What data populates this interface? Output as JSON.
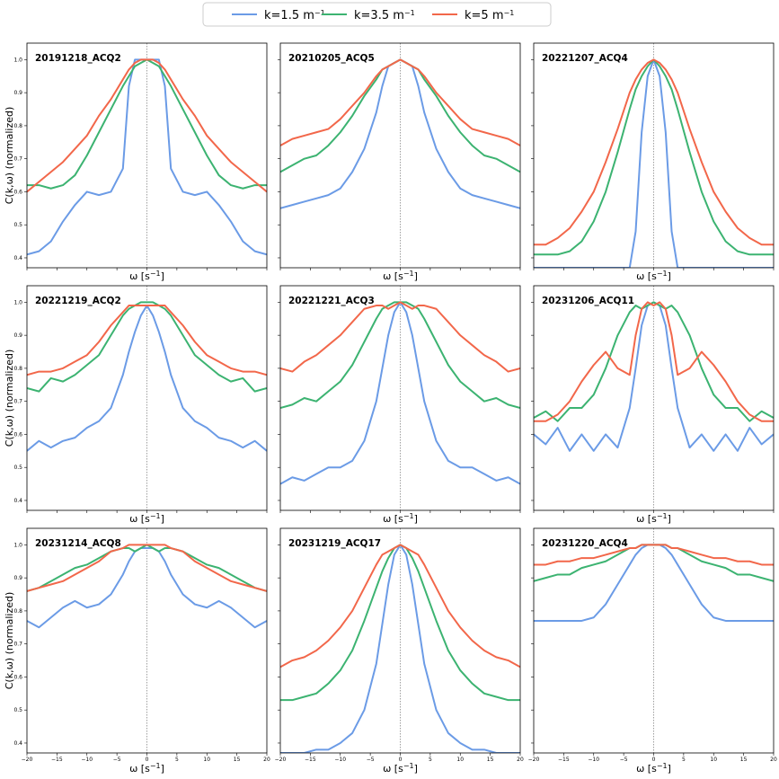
{
  "figure": {
    "legend": [
      {
        "label": "k=1.5 m",
        "sup": "−1",
        "color": "#6b9be6"
      },
      {
        "label": "k=3.5 m",
        "sup": "−1",
        "color": "#3cb371"
      },
      {
        "label": "k=5 m",
        "sup": "−1",
        "color": "#f2674a"
      }
    ],
    "xlabel": "ω [s",
    "xlabel_sup": "−1",
    "xlabel_end": "]",
    "ylabel": "C(k,ω) (normalized)"
  },
  "chart_data": {
    "type": "line",
    "x": [
      -20,
      -18,
      -16,
      -14,
      -12,
      -10,
      -8,
      -6,
      -4,
      -3,
      -2,
      -1,
      0,
      1,
      2,
      3,
      4,
      6,
      8,
      10,
      12,
      14,
      16,
      18,
      20
    ],
    "xlim": [
      -20,
      20
    ],
    "ylim": [
      0.37,
      1.05
    ],
    "xticks": [
      -20,
      -15,
      -10,
      -5,
      0,
      5,
      10,
      15,
      20
    ],
    "xtick_labels": [
      "−20",
      "−15",
      "−10",
      "−5",
      "0",
      "5",
      "10",
      "15",
      "20"
    ],
    "yticks": [
      0.4,
      0.5,
      0.6,
      0.7,
      0.8,
      0.9,
      1.0
    ],
    "ytick_labels": [
      "0.4",
      "0.5",
      "0.6",
      "0.7",
      "0.8",
      "0.9",
      "1.0"
    ],
    "panels": [
      {
        "title": "20191218_ACQ2",
        "series": [
          {
            "name": "k=1.5",
            "values": [
              0.41,
              0.42,
              0.45,
              0.51,
              0.56,
              0.6,
              0.59,
              0.6,
              0.67,
              0.92,
              1.0,
              1.0,
              1.0,
              1.0,
              1.0,
              0.92,
              0.67,
              0.6,
              0.59,
              0.6,
              0.56,
              0.51,
              0.45,
              0.42,
              0.41
            ]
          },
          {
            "name": "k=3.5",
            "values": [
              0.62,
              0.62,
              0.61,
              0.62,
              0.65,
              0.71,
              0.78,
              0.85,
              0.92,
              0.95,
              0.98,
              0.99,
              1.0,
              0.99,
              0.98,
              0.95,
              0.92,
              0.85,
              0.78,
              0.71,
              0.65,
              0.62,
              0.61,
              0.62,
              0.62
            ]
          },
          {
            "name": "k=5",
            "values": [
              0.6,
              0.63,
              0.66,
              0.69,
              0.73,
              0.77,
              0.83,
              0.88,
              0.94,
              0.97,
              0.99,
              1.0,
              1.0,
              1.0,
              0.99,
              0.97,
              0.94,
              0.88,
              0.83,
              0.77,
              0.73,
              0.69,
              0.66,
              0.63,
              0.6
            ]
          }
        ]
      },
      {
        "title": "20210205_ACQ5",
        "series": [
          {
            "name": "k=1.5",
            "values": [
              0.55,
              0.56,
              0.57,
              0.58,
              0.59,
              0.61,
              0.66,
              0.73,
              0.84,
              0.92,
              0.98,
              0.99,
              1.0,
              0.99,
              0.98,
              0.92,
              0.84,
              0.73,
              0.66,
              0.61,
              0.59,
              0.58,
              0.57,
              0.56,
              0.55
            ]
          },
          {
            "name": "k=3.5",
            "values": [
              0.66,
              0.68,
              0.7,
              0.71,
              0.74,
              0.78,
              0.83,
              0.89,
              0.94,
              0.97,
              0.98,
              0.99,
              1.0,
              0.99,
              0.98,
              0.97,
              0.94,
              0.89,
              0.83,
              0.78,
              0.74,
              0.71,
              0.7,
              0.68,
              0.66
            ]
          },
          {
            "name": "k=5",
            "values": [
              0.74,
              0.76,
              0.77,
              0.78,
              0.79,
              0.82,
              0.86,
              0.9,
              0.95,
              0.97,
              0.98,
              0.99,
              1.0,
              0.99,
              0.98,
              0.97,
              0.95,
              0.9,
              0.86,
              0.82,
              0.79,
              0.78,
              0.77,
              0.76,
              0.74
            ]
          }
        ]
      },
      {
        "title": "20221207_ACQ4",
        "series": [
          {
            "name": "k=1.5",
            "values": [
              0.37,
              0.37,
              0.37,
              0.37,
              0.37,
              0.37,
              0.37,
              0.37,
              0.37,
              0.48,
              0.78,
              0.95,
              1.0,
              0.95,
              0.78,
              0.48,
              0.37,
              0.37,
              0.37,
              0.37,
              0.37,
              0.37,
              0.37,
              0.37,
              0.37
            ]
          },
          {
            "name": "k=3.5",
            "values": [
              0.41,
              0.41,
              0.41,
              0.42,
              0.45,
              0.51,
              0.6,
              0.72,
              0.85,
              0.91,
              0.95,
              0.98,
              1.0,
              0.98,
              0.95,
              0.91,
              0.85,
              0.72,
              0.6,
              0.51,
              0.45,
              0.42,
              0.41,
              0.41,
              0.41
            ]
          },
          {
            "name": "k=5",
            "values": [
              0.44,
              0.44,
              0.46,
              0.49,
              0.54,
              0.6,
              0.69,
              0.79,
              0.9,
              0.94,
              0.97,
              0.99,
              1.0,
              0.99,
              0.97,
              0.94,
              0.9,
              0.79,
              0.69,
              0.6,
              0.54,
              0.49,
              0.46,
              0.44,
              0.44
            ]
          }
        ]
      },
      {
        "title": "20221219_ACQ2",
        "series": [
          {
            "name": "k=1.5",
            "values": [
              0.55,
              0.58,
              0.56,
              0.58,
              0.59,
              0.62,
              0.64,
              0.68,
              0.78,
              0.85,
              0.91,
              0.96,
              0.99,
              0.96,
              0.91,
              0.85,
              0.78,
              0.68,
              0.64,
              0.62,
              0.59,
              0.58,
              0.56,
              0.58,
              0.55
            ]
          },
          {
            "name": "k=3.5",
            "values": [
              0.74,
              0.73,
              0.77,
              0.76,
              0.78,
              0.81,
              0.84,
              0.9,
              0.96,
              0.98,
              0.99,
              1.0,
              1.0,
              1.0,
              0.99,
              0.98,
              0.96,
              0.9,
              0.84,
              0.81,
              0.78,
              0.76,
              0.77,
              0.73,
              0.74
            ]
          },
          {
            "name": "k=5",
            "values": [
              0.78,
              0.79,
              0.79,
              0.8,
              0.82,
              0.84,
              0.88,
              0.93,
              0.97,
              0.99,
              0.99,
              0.99,
              0.99,
              0.99,
              0.99,
              0.99,
              0.97,
              0.93,
              0.88,
              0.84,
              0.82,
              0.8,
              0.79,
              0.79,
              0.78
            ]
          }
        ]
      },
      {
        "title": "20221221_ACQ3",
        "series": [
          {
            "name": "k=1.5",
            "values": [
              0.45,
              0.47,
              0.46,
              0.48,
              0.5,
              0.5,
              0.52,
              0.58,
              0.7,
              0.8,
              0.9,
              0.97,
              1.0,
              0.97,
              0.9,
              0.8,
              0.7,
              0.58,
              0.52,
              0.5,
              0.5,
              0.48,
              0.46,
              0.47,
              0.45
            ]
          },
          {
            "name": "k=3.5",
            "values": [
              0.68,
              0.69,
              0.71,
              0.7,
              0.73,
              0.76,
              0.81,
              0.88,
              0.95,
              0.98,
              0.99,
              1.0,
              1.0,
              1.0,
              0.99,
              0.98,
              0.95,
              0.88,
              0.81,
              0.76,
              0.73,
              0.7,
              0.71,
              0.69,
              0.68
            ]
          },
          {
            "name": "k=5",
            "values": [
              0.8,
              0.79,
              0.82,
              0.84,
              0.87,
              0.9,
              0.94,
              0.98,
              0.99,
              0.99,
              0.98,
              0.99,
              1.0,
              0.99,
              0.98,
              0.99,
              0.99,
              0.98,
              0.94,
              0.9,
              0.87,
              0.84,
              0.82,
              0.79,
              0.8
            ]
          }
        ]
      },
      {
        "title": "20231206_ACQ11",
        "series": [
          {
            "name": "k=1.5",
            "values": [
              0.6,
              0.57,
              0.62,
              0.55,
              0.6,
              0.55,
              0.6,
              0.56,
              0.68,
              0.8,
              0.93,
              0.99,
              1.0,
              0.99,
              0.93,
              0.8,
              0.68,
              0.56,
              0.6,
              0.55,
              0.6,
              0.55,
              0.62,
              0.57,
              0.6
            ]
          },
          {
            "name": "k=3.5",
            "values": [
              0.65,
              0.67,
              0.64,
              0.68,
              0.68,
              0.72,
              0.8,
              0.9,
              0.97,
              0.99,
              0.98,
              0.99,
              1.0,
              0.99,
              0.98,
              0.99,
              0.97,
              0.9,
              0.8,
              0.72,
              0.68,
              0.68,
              0.64,
              0.67,
              0.65
            ]
          },
          {
            "name": "k=5",
            "values": [
              0.64,
              0.64,
              0.66,
              0.7,
              0.76,
              0.81,
              0.85,
              0.8,
              0.78,
              0.9,
              0.98,
              1.0,
              0.99,
              1.0,
              0.98,
              0.9,
              0.78,
              0.8,
              0.85,
              0.81,
              0.76,
              0.7,
              0.66,
              0.64,
              0.64
            ]
          }
        ]
      },
      {
        "title": "20231214_ACQ8",
        "series": [
          {
            "name": "k=1.5",
            "values": [
              0.77,
              0.75,
              0.78,
              0.81,
              0.83,
              0.81,
              0.82,
              0.85,
              0.91,
              0.95,
              0.98,
              0.99,
              0.99,
              0.99,
              0.98,
              0.95,
              0.91,
              0.85,
              0.82,
              0.81,
              0.83,
              0.81,
              0.78,
              0.75,
              0.77
            ]
          },
          {
            "name": "k=3.5",
            "values": [
              0.86,
              0.87,
              0.89,
              0.91,
              0.93,
              0.94,
              0.96,
              0.98,
              0.99,
              0.99,
              0.98,
              0.99,
              1.0,
              0.99,
              0.98,
              0.99,
              0.99,
              0.98,
              0.96,
              0.94,
              0.93,
              0.91,
              0.89,
              0.87,
              0.86
            ]
          },
          {
            "name": "k=5",
            "values": [
              0.86,
              0.87,
              0.88,
              0.89,
              0.91,
              0.93,
              0.95,
              0.98,
              0.99,
              1.0,
              1.0,
              1.0,
              1.0,
              1.0,
              1.0,
              1.0,
              0.99,
              0.98,
              0.95,
              0.93,
              0.91,
              0.89,
              0.88,
              0.87,
              0.86
            ]
          }
        ]
      },
      {
        "title": "20231219_ACQ17",
        "series": [
          {
            "name": "k=1.5",
            "values": [
              0.37,
              0.37,
              0.37,
              0.38,
              0.38,
              0.4,
              0.43,
              0.5,
              0.64,
              0.76,
              0.88,
              0.97,
              1.0,
              0.97,
              0.88,
              0.76,
              0.64,
              0.5,
              0.43,
              0.4,
              0.38,
              0.38,
              0.37,
              0.37,
              0.37
            ]
          },
          {
            "name": "k=3.5",
            "values": [
              0.53,
              0.53,
              0.54,
              0.55,
              0.58,
              0.62,
              0.68,
              0.77,
              0.87,
              0.92,
              0.96,
              0.99,
              1.0,
              0.99,
              0.96,
              0.92,
              0.87,
              0.77,
              0.68,
              0.62,
              0.58,
              0.55,
              0.54,
              0.53,
              0.53
            ]
          },
          {
            "name": "k=5",
            "values": [
              0.63,
              0.65,
              0.66,
              0.68,
              0.71,
              0.75,
              0.8,
              0.87,
              0.94,
              0.97,
              0.98,
              0.99,
              1.0,
              0.99,
              0.98,
              0.97,
              0.94,
              0.87,
              0.8,
              0.75,
              0.71,
              0.68,
              0.66,
              0.65,
              0.63
            ]
          }
        ]
      },
      {
        "title": "20231220_ACQ4",
        "series": [
          {
            "name": "k=1.5",
            "values": [
              0.77,
              0.77,
              0.77,
              0.77,
              0.77,
              0.78,
              0.82,
              0.88,
              0.94,
              0.97,
              0.99,
              1.0,
              1.0,
              1.0,
              0.99,
              0.97,
              0.94,
              0.88,
              0.82,
              0.78,
              0.77,
              0.77,
              0.77,
              0.77,
              0.77
            ]
          },
          {
            "name": "k=3.5",
            "values": [
              0.89,
              0.9,
              0.91,
              0.91,
              0.93,
              0.94,
              0.95,
              0.97,
              0.99,
              0.99,
              1.0,
              1.0,
              1.0,
              1.0,
              1.0,
              0.99,
              0.99,
              0.97,
              0.95,
              0.94,
              0.93,
              0.91,
              0.91,
              0.9,
              0.89
            ]
          },
          {
            "name": "k=5",
            "values": [
              0.94,
              0.94,
              0.95,
              0.95,
              0.96,
              0.96,
              0.97,
              0.98,
              0.99,
              0.99,
              1.0,
              1.0,
              1.0,
              1.0,
              1.0,
              0.99,
              0.99,
              0.98,
              0.97,
              0.96,
              0.96,
              0.95,
              0.95,
              0.94,
              0.94
            ]
          }
        ]
      }
    ]
  }
}
